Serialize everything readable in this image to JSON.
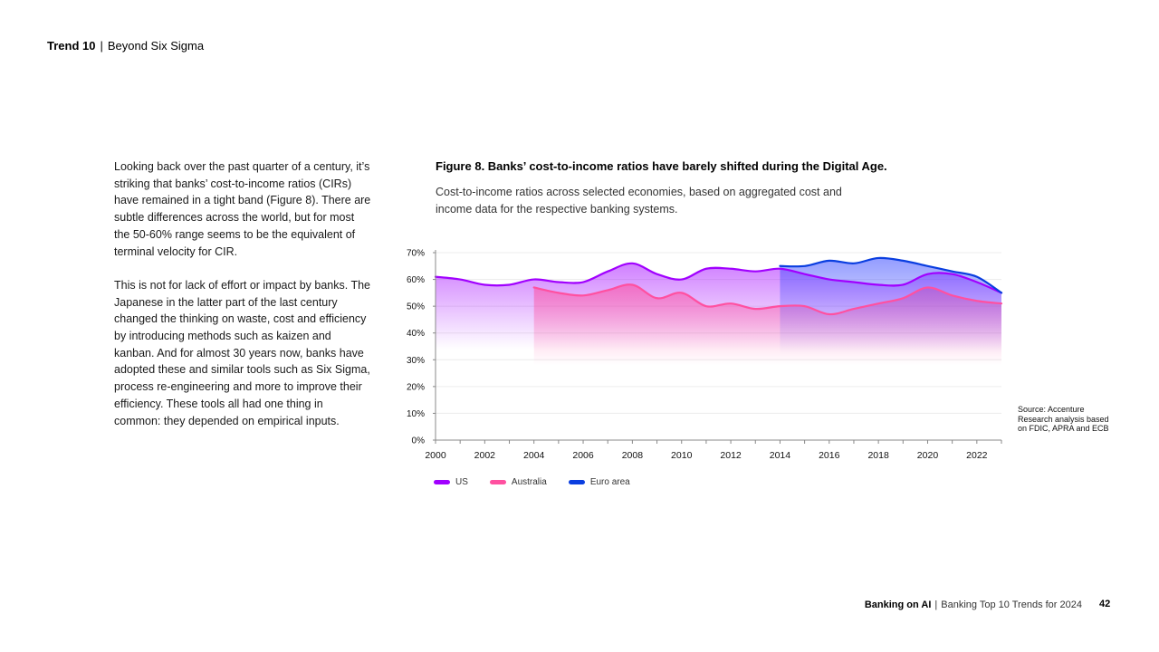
{
  "header": {
    "trend": "Trend 10",
    "separator": "|",
    "section": "Beyond Six Sigma"
  },
  "body": {
    "paragraph1": "Looking back over the past quarter of a century, it’s striking that banks’ cost-to-income ratios (CIRs) have remained in a tight band (Figure 8). There are subtle differences across the world, but for most the 50-60% range seems to be the equivalent of terminal velocity for CIR.",
    "paragraph2": "This is not for lack of effort or impact by banks. The Japanese in the latter part of the last century changed the thinking on waste, cost and efficiency by introducing methods such as kaizen and kanban. And for almost 30 years now, banks have adopted these and similar tools such as Six Sigma, process re-engineering and more to improve their efficiency. These tools all had one thing in common: they depended on empirical inputs."
  },
  "figure": {
    "title": "Figure 8. Banks’ cost-to-income ratios have barely shifted during the Digital Age.",
    "subtitle": "Cost-to-income ratios across selected economies, based on aggregated cost and income data for the respective banking systems.",
    "source": "Source: Accenture Research analysis based on FDIC, APRA and ECB"
  },
  "chart_data": {
    "type": "area",
    "x": [
      2000,
      2001,
      2002,
      2003,
      2004,
      2005,
      2006,
      2007,
      2008,
      2009,
      2010,
      2011,
      2012,
      2013,
      2014,
      2015,
      2016,
      2017,
      2018,
      2019,
      2020,
      2021,
      2022,
      2023
    ],
    "xlim": [
      2000,
      2023
    ],
    "ylim": [
      0,
      70
    ],
    "xticks": [
      "2000",
      "2002",
      "2004",
      "2006",
      "2008",
      "2010",
      "2012",
      "2014",
      "2016",
      "2018",
      "2020",
      "2022"
    ],
    "yticks": [
      "0%",
      "10%",
      "20%",
      "30%",
      "40%",
      "50%",
      "60%",
      "70%"
    ],
    "grid": true,
    "legend_position": "bottom-left",
    "series": [
      {
        "name": "US",
        "color": "#a100ff",
        "values": [
          61,
          60,
          58,
          58,
          60,
          59,
          59,
          63,
          66,
          62,
          60,
          64,
          64,
          63,
          64,
          62,
          60,
          59,
          58,
          58,
          62,
          62,
          59,
          55
        ]
      },
      {
        "name": "Australia",
        "color": "#ff50a0",
        "values": [
          null,
          null,
          null,
          null,
          57,
          55,
          54,
          56,
          58,
          53,
          55,
          50,
          51,
          49,
          50,
          50,
          47,
          49,
          51,
          53,
          57,
          54,
          52,
          51
        ]
      },
      {
        "name": "Euro area",
        "color": "#0a3ee0",
        "values": [
          null,
          null,
          null,
          null,
          null,
          null,
          null,
          null,
          null,
          null,
          null,
          null,
          null,
          null,
          65,
          65,
          67,
          66,
          68,
          67,
          65,
          63,
          61,
          55
        ]
      }
    ]
  },
  "footer": {
    "brand": "Banking on AI",
    "separator": "|",
    "title": "Banking Top 10 Trends for 2024",
    "page": "42"
  }
}
